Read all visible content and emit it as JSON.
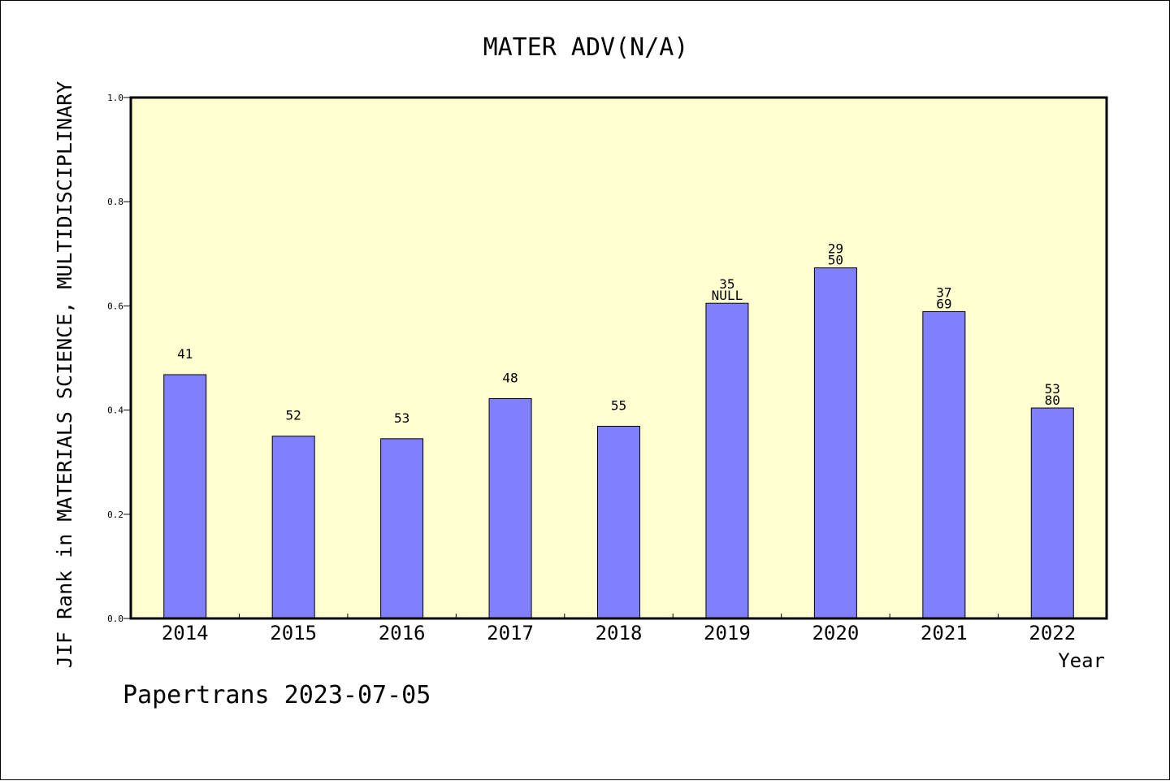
{
  "chart_data": {
    "type": "bar",
    "title": "MATER ADV(N/A)",
    "xlabel": "Year",
    "ylabel": "JIF Rank in MATERIALS SCIENCE, MULTIDISCIPLINARY",
    "ylim": [
      0.0,
      1.0
    ],
    "yticks": [
      "0.0",
      "0.2",
      "0.4",
      "0.6",
      "0.8",
      "1.0"
    ],
    "categories": [
      "2014",
      "2015",
      "2016",
      "2017",
      "2018",
      "2019",
      "2020",
      "2021",
      "2022"
    ],
    "values": [
      0.468,
      0.35,
      0.345,
      0.422,
      0.369,
      0.605,
      0.673,
      0.589,
      0.404
    ],
    "bar_labels": [
      [
        "41"
      ],
      [
        "52"
      ],
      [
        "53"
      ],
      [
        "48"
      ],
      [
        "55"
      ],
      [
        "35",
        "NULL"
      ],
      [
        "29",
        "50"
      ],
      [
        "37",
        "69"
      ],
      [
        "53",
        "80"
      ]
    ],
    "grid": false,
    "colors": {
      "plot_bg": "#ffffd0",
      "bar": "#8080ff",
      "bar_edge": "#000000"
    }
  },
  "footer": {
    "credit": "Papertrans 2023-07-05"
  }
}
